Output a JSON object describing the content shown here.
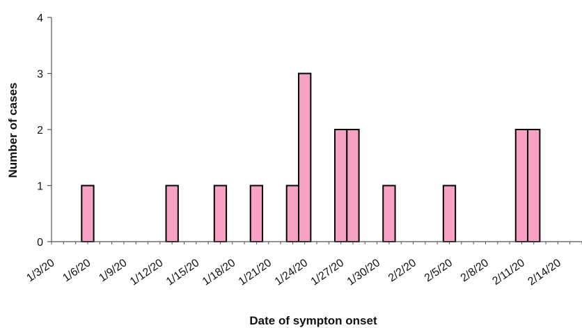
{
  "chart_data": {
    "type": "bar",
    "title": "",
    "xlabel": "Date of sympton onset",
    "ylabel": "Number of cases",
    "ylim": [
      0,
      4
    ],
    "yticks": [
      0,
      1,
      2,
      3,
      4
    ],
    "xlim": [
      "1/3/20",
      "2/16/20"
    ],
    "xtick_labels": [
      "1/3/20",
      "1/6/20",
      "1/9/20",
      "1/12/20",
      "1/15/20",
      "1/18/20",
      "1/21/20",
      "1/24/20",
      "1/27/20",
      "1/30/20",
      "2/2/20",
      "2/5/20",
      "2/8/20",
      "2/11/20",
      "2/14/20"
    ],
    "grid": false,
    "legend": "none",
    "bar_color": "#f7a1c4",
    "bar_edge_color": "#000000",
    "x": [
      "1/6/20",
      "1/13/20",
      "1/17/20",
      "1/20/20",
      "1/23/20",
      "1/24/20",
      "1/27/20",
      "1/28/20",
      "1/31/20",
      "2/5/20",
      "2/11/20",
      "2/12/20"
    ],
    "values": [
      1,
      1,
      1,
      1,
      1,
      3,
      2,
      2,
      1,
      1,
      2,
      2
    ]
  }
}
